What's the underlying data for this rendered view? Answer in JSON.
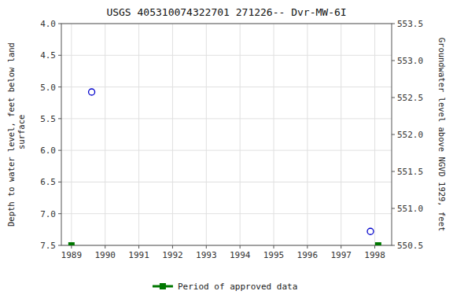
{
  "chart_data": {
    "type": "scatter",
    "title": "USGS 405310074322701 271226-- Dvr-MW-6I",
    "y_label": "Depth to water level, feet below land\n surface",
    "y2_label": "Groundwater level above NGVD 1929, feet",
    "xlim": [
      1988.7,
      1998.5
    ],
    "xticks": [
      1989,
      1990,
      1991,
      1992,
      1993,
      1994,
      1995,
      1996,
      1997,
      1998
    ],
    "ylim": [
      7.5,
      4.0
    ],
    "yticks": [
      {
        "value": 4.0,
        "label": "4.0"
      },
      {
        "value": 4.5,
        "label": "4.5"
      },
      {
        "value": 5.0,
        "label": "5.0"
      },
      {
        "value": 5.5,
        "label": "5.5"
      },
      {
        "value": 6.0,
        "label": "6.0"
      },
      {
        "value": 6.5,
        "label": "6.5"
      },
      {
        "value": 7.0,
        "label": "7.0"
      },
      {
        "value": 7.5,
        "label": "7.5"
      }
    ],
    "y2lim": [
      550.5,
      553.5
    ],
    "y2ticks": [
      553.5,
      {
        "value": 553.0,
        "label": "553.0"
      },
      552.5,
      {
        "value": 552.0,
        "label": "552.0"
      },
      551.5,
      {
        "value": 551.0,
        "label": "551.0"
      },
      550.5
    ],
    "grid": true,
    "legend": "bottom",
    "series": [
      {
        "color": "#0000cc",
        "marker": "open-circle",
        "x": [
          1989.6,
          1997.87
        ],
        "values": [
          5.08,
          7.28
        ]
      },
      {
        "name": "Period of approved data",
        "color": "#007700",
        "marker": "square",
        "x": [
          1989.0,
          1998.1
        ],
        "values": [
          7.5,
          7.5
        ]
      }
    ]
  }
}
